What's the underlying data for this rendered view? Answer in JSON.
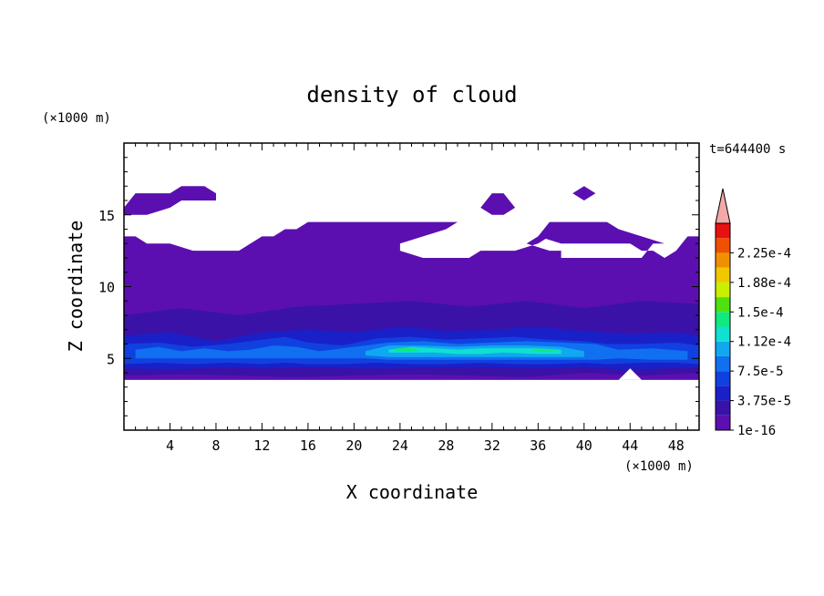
{
  "chart_data": {
    "type": "heatmap",
    "title": "density of cloud",
    "time_label": "t=644400 s",
    "xlabel": "X coordinate",
    "ylabel": "Z coordinate",
    "x_unit": "(×1000 m)",
    "y_unit": "(×1000 m)",
    "xlim": [
      0,
      50
    ],
    "ylim": [
      0,
      20
    ],
    "x_ticks": [
      4,
      8,
      12,
      16,
      20,
      24,
      28,
      32,
      36,
      40,
      44,
      48
    ],
    "x_tick_labels": [
      "4",
      "8",
      "12",
      "16",
      "20",
      "24",
      "28",
      "32",
      "36",
      "40",
      "44",
      "48"
    ],
    "y_ticks": [
      5,
      10,
      15
    ],
    "y_tick_labels": [
      "5",
      "10",
      "15"
    ],
    "colorbar": {
      "levels": [
        1e-16,
        1.875e-05,
        3.75e-05,
        5.625e-05,
        7.5e-05,
        9.375e-05,
        0.0001125,
        0.00013125,
        0.00015,
        0.00016875,
        0.0001875,
        0.00020625,
        0.000225,
        0.00024375
      ],
      "colors": [
        "#5b0fb0",
        "#3a12a8",
        "#1a20c8",
        "#1040e0",
        "#1070f0",
        "#10a8f0",
        "#10e0d0",
        "#10e880",
        "#50e010",
        "#c8f000",
        "#f0c800",
        "#f09000",
        "#f05000",
        "#e81010"
      ],
      "labels": [
        {
          "level": 1e-16,
          "text": "1e-16"
        },
        {
          "level": 3.75e-05,
          "text": "3.75e-5"
        },
        {
          "level": 7.5e-05,
          "text": "7.5e-5"
        },
        {
          "level": 0.0001125,
          "text": "1.12e-4"
        },
        {
          "level": 0.00015,
          "text": "1.5e-4"
        },
        {
          "level": 0.0001875,
          "text": "1.88e-4"
        },
        {
          "level": 0.000225,
          "text": "2.25e-4"
        }
      ],
      "overflow_color": "#f4a8a8"
    },
    "regions": [
      {
        "level": 1,
        "x": [
          0,
          1,
          2,
          4,
          5,
          7,
          8,
          8,
          7,
          5,
          4,
          2,
          1,
          0
        ],
        "z": [
          15.5,
          16.5,
          16.5,
          16.5,
          17,
          17,
          16.5,
          16,
          16,
          16,
          15.5,
          15,
          15,
          15
        ]
      },
      {
        "level": 1,
        "x": [
          31,
          32,
          33,
          34,
          33,
          32,
          31
        ],
        "z": [
          15.5,
          16.5,
          16.5,
          15.5,
          15,
          15,
          15.5
        ]
      },
      {
        "level": 1,
        "x": [
          39,
          40,
          41,
          40,
          39
        ],
        "z": [
          16.5,
          17,
          16.5,
          16,
          16.5
        ]
      },
      {
        "level": 1,
        "x": [
          0,
          0,
          1,
          2,
          4,
          6,
          10,
          11,
          12,
          13,
          14,
          15,
          16,
          17,
          19,
          22,
          23,
          24,
          26,
          29,
          28,
          26,
          24,
          24,
          26,
          30,
          31,
          32,
          34,
          36,
          37,
          36,
          35,
          37,
          38,
          38,
          40,
          41,
          42,
          44,
          45,
          46,
          47,
          45,
          43,
          42,
          40,
          37,
          36,
          38,
          40,
          42,
          44,
          45,
          46,
          47,
          48,
          49,
          50,
          50,
          0
        ],
        "z": [
          9,
          13.5,
          13.5,
          13,
          13,
          12.5,
          12.5,
          13,
          13.5,
          13.5,
          14,
          14,
          14.5,
          14.5,
          14.5,
          14.5,
          14.5,
          14.5,
          14.5,
          14.5,
          14,
          13.5,
          13,
          12.5,
          12,
          12,
          12.5,
          12.5,
          12.5,
          13,
          13.5,
          13.5,
          13,
          12.5,
          12.5,
          12,
          12,
          12,
          12,
          12,
          12,
          13,
          13,
          13.5,
          14,
          14.5,
          14.5,
          14.5,
          13.5,
          13,
          13,
          13,
          13,
          12.5,
          12.5,
          12,
          12.5,
          13.5,
          13.5,
          9,
          9
        ]
      },
      {
        "level": 1,
        "x": [
          0,
          50,
          50,
          0
        ],
        "z": [
          3.5,
          3.5,
          9.5,
          9.5
        ]
      },
      {
        "level": 2,
        "x": [
          0,
          5,
          10,
          15,
          20,
          25,
          30,
          35,
          40,
          45,
          50,
          50,
          45,
          40,
          35,
          30,
          25,
          20,
          15,
          10,
          5,
          0
        ],
        "z": [
          8,
          8.5,
          8,
          8.6,
          8.8,
          9,
          8.6,
          9,
          8.5,
          9,
          8.8,
          4,
          3.8,
          4,
          3.7,
          3.8,
          3.9,
          3.8,
          3.7,
          3.8,
          3.9,
          3.8
        ]
      },
      {
        "level": 3,
        "x": [
          0,
          4,
          8,
          12,
          16,
          20,
          24,
          28,
          32,
          36,
          40,
          44,
          48,
          50,
          50,
          44,
          40,
          36,
          32,
          28,
          24,
          20,
          16,
          12,
          8,
          4,
          0
        ],
        "z": [
          6.6,
          6.8,
          6.2,
          6.8,
          7,
          6.8,
          7.2,
          6.9,
          7,
          7.2,
          6.9,
          6.7,
          6.8,
          6.6,
          4.4,
          4.2,
          4.4,
          4.3,
          4.4,
          4.4,
          4.3,
          4.3,
          4.4,
          4.3,
          4.4,
          4.2,
          4.3
        ]
      },
      {
        "level": 4,
        "x": [
          0,
          3,
          6,
          9,
          12,
          14,
          16,
          19,
          22,
          25,
          28,
          31,
          34,
          37,
          40,
          42,
          45,
          48,
          50,
          50,
          48,
          45,
          42,
          40,
          37,
          34,
          31,
          28,
          25,
          22,
          19,
          16,
          14,
          12,
          9,
          6,
          3,
          0
        ],
        "z": [
          6,
          6.1,
          5.8,
          6,
          6.3,
          6.5,
          6.1,
          5.9,
          6.4,
          6.5,
          6.3,
          6.4,
          6.5,
          6.3,
          6.2,
          6,
          6,
          6.1,
          5.9,
          4.6,
          4.7,
          4.7,
          4.6,
          4.7,
          4.6,
          4.6,
          4.7,
          4.6,
          4.6,
          4.7,
          4.6,
          4.6,
          4.7,
          4.6,
          4.7,
          4.6,
          4.7,
          4.6
        ]
      },
      {
        "level": 5,
        "x": [
          1,
          3,
          5,
          7,
          9,
          11,
          13,
          15,
          17,
          19,
          21,
          23,
          26,
          29,
          32,
          35,
          38,
          41,
          43,
          46,
          49,
          49,
          46,
          43,
          41,
          38,
          35,
          32,
          29,
          26,
          23,
          21,
          19,
          17,
          15,
          13,
          11,
          9,
          7,
          5,
          3,
          1
        ],
        "z": [
          5.6,
          5.8,
          5.5,
          5.7,
          5.5,
          5.6,
          5.9,
          5.8,
          5.5,
          5.7,
          5.9,
          6.1,
          6.2,
          6,
          6.1,
          6.2,
          6.1,
          6,
          5.6,
          5.7,
          5.5,
          4.9,
          4.9,
          5,
          4.9,
          4.9,
          4.9,
          4.9,
          4.9,
          4.9,
          4.9,
          5,
          5,
          5,
          5,
          5,
          5,
          5,
          5,
          5,
          5,
          5
        ]
      },
      {
        "level": 6,
        "x": [
          21,
          23,
          26,
          29,
          32,
          35,
          38,
          40,
          40,
          38,
          35,
          32,
          29,
          26,
          23,
          21
        ],
        "z": [
          5.5,
          5.9,
          5.9,
          5.8,
          5.9,
          5.9,
          5.8,
          5.5,
          5.1,
          5.1,
          5.1,
          5.1,
          5.1,
          5.1,
          5.1,
          5.2
        ]
      },
      {
        "level": 7,
        "x": [
          23,
          25,
          27,
          29,
          31,
          33,
          36,
          38,
          38,
          36,
          33,
          31,
          29,
          27,
          25,
          23
        ],
        "z": [
          5.6,
          5.8,
          5.7,
          5.6,
          5.7,
          5.7,
          5.7,
          5.6,
          5.3,
          5.3,
          5.4,
          5.3,
          5.3,
          5.4,
          5.4,
          5.4
        ]
      },
      {
        "level": 8,
        "x": [
          23.5,
          24.5,
          25.5,
          25.5,
          24.5,
          23.5
        ],
        "z": [
          5.65,
          5.75,
          5.65,
          5.5,
          5.45,
          5.5
        ]
      },
      {
        "level": 8,
        "x": [
          35.5,
          36.5,
          37.5,
          37.5,
          36.5,
          35.5
        ],
        "z": [
          5.6,
          5.65,
          5.6,
          5.5,
          5.45,
          5.5
        ]
      },
      {
        "level": 0,
        "x": [
          43,
          44,
          45
        ],
        "z": [
          3.5,
          4.3,
          3.5
        ]
      }
    ]
  }
}
